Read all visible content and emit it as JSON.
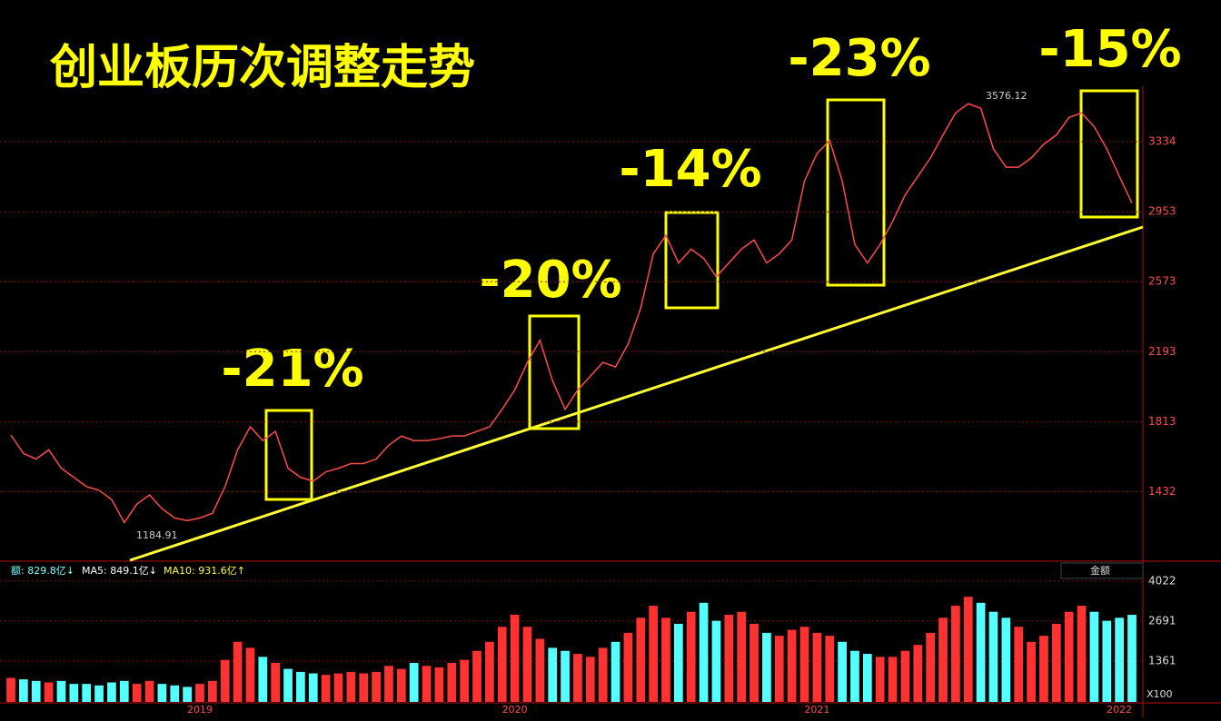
{
  "chart_data": [
    {
      "type": "line",
      "title": "创业板历次调整走势",
      "color": "#ff4a4a",
      "values": [
        1740,
        1640,
        1610,
        1660,
        1560,
        1510,
        1460,
        1440,
        1390,
        1265,
        1365,
        1415,
        1340,
        1290,
        1275,
        1290,
        1315,
        1460,
        1660,
        1785,
        1710,
        1760,
        1560,
        1510,
        1490,
        1540,
        1560,
        1585,
        1585,
        1610,
        1685,
        1735,
        1710,
        1710,
        1720,
        1735,
        1735,
        1760,
        1785,
        1880,
        1985,
        2135,
        2255,
        2035,
        1880,
        1985,
        2060,
        2135,
        2110,
        2235,
        2430,
        2725,
        2825,
        2675,
        2750,
        2700,
        2600,
        2675,
        2750,
        2800,
        2675,
        2725,
        2800,
        3120,
        3270,
        3340,
        3120,
        2775,
        2675,
        2775,
        2900,
        3045,
        3145,
        3245,
        3370,
        3490,
        3540,
        3515,
        3295,
        3195,
        3195,
        3245,
        3320,
        3370,
        3465,
        3490,
        3415,
        3295,
        3145,
        3000
      ],
      "ylim": [
        1060,
        3610
      ],
      "yticks": [
        1432,
        1813,
        2193,
        2573,
        2953,
        3334
      ],
      "grid": true,
      "annotations": [
        "-21%",
        "-20%",
        "-14%",
        "-23%",
        "-15%"
      ],
      "max_label": "3576.12",
      "min_label": "1184.91"
    },
    {
      "type": "bar",
      "up_color": "#ff3232",
      "down_color": "#54ffff",
      "categories": [
        null,
        null,
        null,
        null,
        null,
        null,
        null,
        null,
        null,
        null,
        null,
        null,
        null,
        null,
        null,
        "2019",
        null,
        null,
        null,
        null,
        null,
        null,
        null,
        null,
        null,
        null,
        null,
        null,
        null,
        null,
        null,
        null,
        null,
        null,
        null,
        null,
        null,
        null,
        null,
        null,
        "2020",
        null,
        null,
        null,
        null,
        null,
        null,
        null,
        null,
        null,
        null,
        null,
        null,
        null,
        null,
        null,
        null,
        null,
        null,
        null,
        null,
        null,
        null,
        null,
        "2021",
        null,
        null,
        null,
        null,
        null,
        null,
        null,
        null,
        null,
        null,
        null,
        null,
        null,
        null,
        null,
        null,
        null,
        null,
        null,
        null,
        null,
        null,
        null,
        "2022",
        null
      ],
      "values": [
        800,
        750,
        700,
        650,
        700,
        600,
        600,
        550,
        650,
        700,
        600,
        700,
        600,
        550,
        500,
        600,
        700,
        1400,
        2000,
        1800,
        1500,
        1300,
        1100,
        1000,
        950,
        900,
        950,
        1000,
        950,
        1000,
        1200,
        1100,
        1300,
        1200,
        1150,
        1300,
        1400,
        1700,
        2000,
        2500,
        2900,
        2500,
        2100,
        1800,
        1700,
        1600,
        1500,
        1800,
        2000,
        2300,
        2800,
        3200,
        2800,
        2600,
        3000,
        3300,
        2700,
        2900,
        3000,
        2600,
        2300,
        2200,
        2400,
        2500,
        2300,
        2200,
        2000,
        1700,
        1600,
        1500,
        1500,
        1700,
        1900,
        2300,
        2800,
        3200,
        3500,
        3300,
        3000,
        2800,
        2500,
        2000,
        2200,
        2600,
        3000,
        3200,
        3000,
        2700,
        2800,
        2900
      ],
      "ylim": [
        0,
        4200
      ],
      "yticks": [
        1361,
        2691,
        4022
      ],
      "grid": true,
      "indicators": [
        "额: 829.8亿↓",
        "MA5: 849.1亿↓",
        "MA10: 931.6亿↑"
      ],
      "selector": "金额",
      "unit": "X100"
    }
  ]
}
